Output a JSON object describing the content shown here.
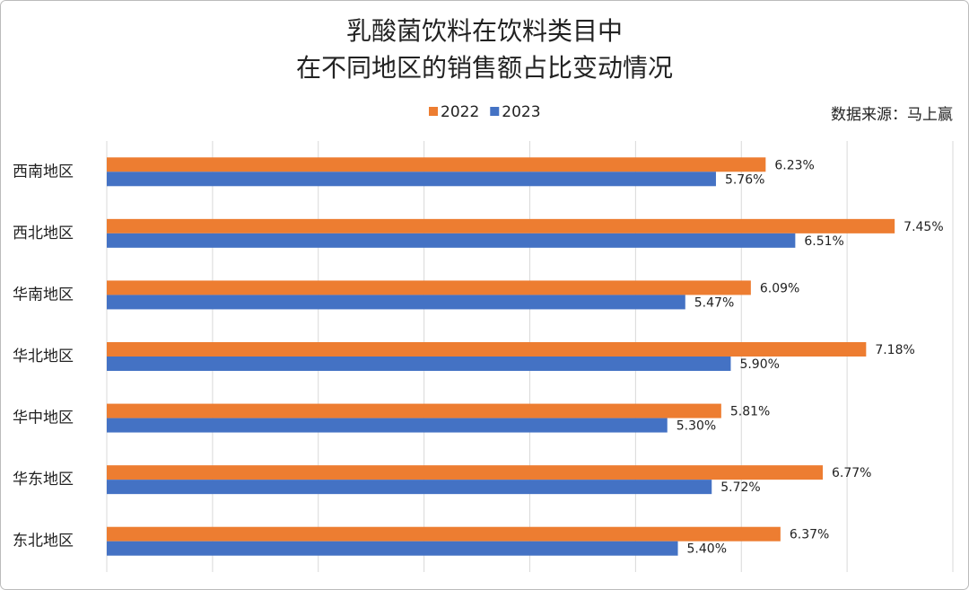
{
  "chart_data": {
    "type": "hbar",
    "title": [
      "乳酸菌饮料在饮料类目中",
      "在不同地区的销售额占比变动情况"
    ],
    "source": "数据来源：马上赢",
    "categories": [
      "西南地区",
      "西北地区",
      "华南地区",
      "华北地区",
      "华中地区",
      "华东地区",
      "东北地区"
    ],
    "series": [
      {
        "name": "2022",
        "color": "#ED7D31",
        "values": [
          6.23,
          7.45,
          6.09,
          7.18,
          5.81,
          6.77,
          6.37
        ],
        "value_labels": [
          "6.23%",
          "7.45%",
          "6.09%",
          "7.18%",
          "5.81%",
          "6.77%",
          "6.37%"
        ]
      },
      {
        "name": "2023",
        "color": "#4472C4",
        "values": [
          5.76,
          6.51,
          5.47,
          5.9,
          5.3,
          5.72,
          5.4
        ],
        "value_labels": [
          "5.76%",
          "6.51%",
          "5.47%",
          "5.90%",
          "5.30%",
          "5.72%",
          "5.40%"
        ]
      }
    ],
    "xlim": [
      0,
      8
    ],
    "xgrid": [
      0,
      1,
      2,
      3,
      4,
      5,
      6,
      7,
      8
    ],
    "grid": true,
    "legend": "top"
  }
}
